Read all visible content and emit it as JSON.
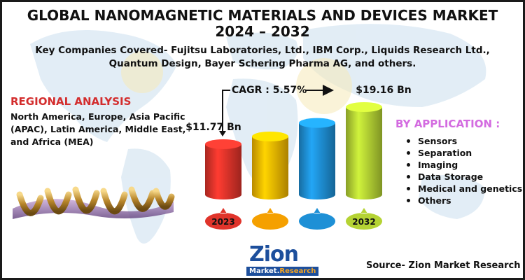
{
  "header": {
    "title_line1": "GLOBAL NANOMAGNETIC MATERIALS AND DEVICES MARKET",
    "title_line2": "2024 – 2032",
    "companies": "Key Companies Covered- Fujitsu Laboratories, Ltd., IBM Corp., Liquids Research Ltd., Quantum Design, Bayer Schering Pharma AG, and others."
  },
  "regional": {
    "title": "REGIONAL ANALYSIS",
    "text": "North America, Europe, Asia Pacific (APAC), Latin America, Middle East, and Africa (MEA)"
  },
  "application": {
    "title": "BY APPLICATION :",
    "items": [
      "Sensors",
      "Separation",
      "Imaging",
      "Data Storage",
      "Medical and genetics",
      "Others"
    ]
  },
  "chart_data": {
    "type": "bar",
    "categories": [
      "2023",
      "",
      "",
      "2032"
    ],
    "values": [
      11.77,
      13.3,
      16.0,
      19.16
    ],
    "data_labels": [
      "$11.77 Bn",
      "",
      "",
      "$19.16 Bn"
    ],
    "cagr_label": "CAGR : 5.57%",
    "bar_colors": [
      "#e0342b",
      "#f5b800",
      "#1e90d6",
      "#b5d334"
    ],
    "label_colors": [
      "#e0342b",
      "#f5a000",
      "#1e90d6",
      "#b5d334"
    ]
  },
  "logo": {
    "main": "Zion",
    "sub_part1": "Market.",
    "sub_part2": "Research"
  },
  "source": "Source- Zion Market Research"
}
